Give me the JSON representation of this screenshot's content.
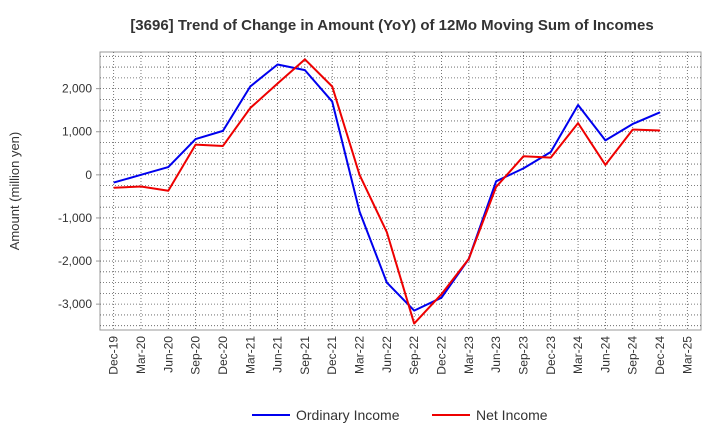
{
  "chart_data": {
    "type": "line",
    "title": "[3696]  Trend of Change in Amount (YoY) of 12Mo Moving Sum of Incomes",
    "xlabel": "",
    "ylabel": "Amount (million yen)",
    "categories": [
      "Dec-19",
      "Mar-20",
      "Jun-20",
      "Sep-20",
      "Dec-20",
      "Mar-21",
      "Jun-21",
      "Sep-21",
      "Dec-21",
      "Mar-22",
      "Jun-22",
      "Sep-22",
      "Dec-22",
      "Mar-23",
      "Jun-23",
      "Sep-23",
      "Dec-23",
      "Mar-24",
      "Jun-24",
      "Sep-24",
      "Dec-24",
      "Mar-25"
    ],
    "ylim": [
      -3600,
      2850
    ],
    "yticks": [
      -3000,
      -2000,
      -1000,
      0,
      1000,
      2000
    ],
    "ytick_labels": [
      "-3,000",
      "-2,000",
      "-1,000",
      "0",
      "1,000",
      "2,000"
    ],
    "grid": true,
    "legend_position": "bottom",
    "series": [
      {
        "name": "Ordinary Income",
        "color": "#0000ee",
        "values": [
          -180,
          0,
          180,
          830,
          1020,
          2050,
          2560,
          2430,
          1700,
          -850,
          -2500,
          -3150,
          -2850,
          -1950,
          -150,
          150,
          530,
          1620,
          800,
          1180,
          1450,
          null
        ]
      },
      {
        "name": "Net Income",
        "color": "#ee0000",
        "values": [
          -300,
          -270,
          -370,
          700,
          670,
          1550,
          2120,
          2680,
          2050,
          0,
          -1330,
          -3450,
          -2770,
          -1950,
          -280,
          430,
          400,
          1200,
          230,
          1050,
          1030,
          null
        ]
      }
    ]
  }
}
